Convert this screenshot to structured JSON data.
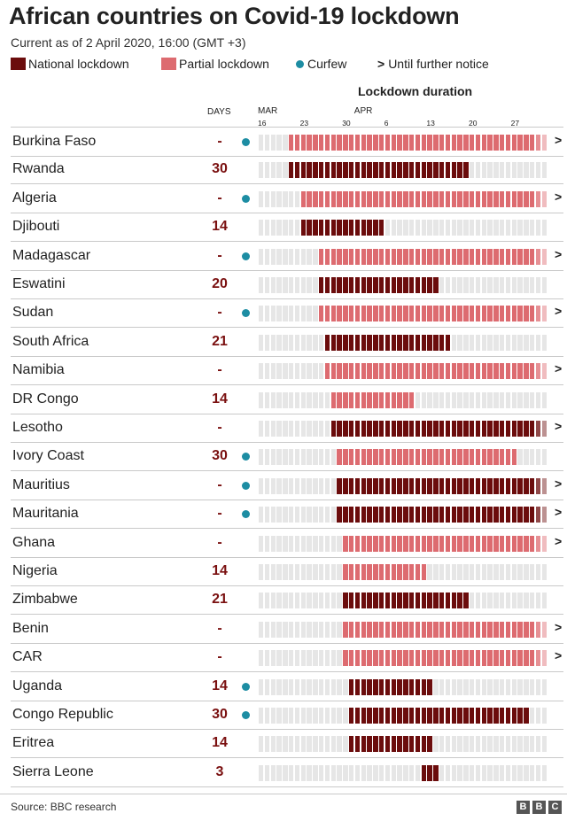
{
  "header": {
    "title": "African countries on Covid-19 lockdown",
    "subtitle": "Current as of 2 April 2020, 16:00 (GMT +3)"
  },
  "legend": {
    "national": "National lockdown",
    "partial": "Partial lockdown",
    "curfew": "Curfew",
    "ongoing": "Until further notice",
    "ongoing_symbol": ">"
  },
  "colors": {
    "national": "#6b0c0c",
    "partial": "#dd6b70",
    "empty": "#e6e6e6",
    "curfew": "#1d8da3",
    "days_text": "#7a1010"
  },
  "axis": {
    "title": "Lockdown duration",
    "days_header": "DAYS",
    "months": [
      {
        "label": "MAR",
        "day": 16
      },
      {
        "label": "APR",
        "day": 32
      }
    ],
    "ticks": [
      {
        "label": "16",
        "day": 16
      },
      {
        "label": "23",
        "day": 23
      },
      {
        "label": "30",
        "day": 30
      },
      {
        "label": "6",
        "day": 37
      },
      {
        "label": "13",
        "day": 44
      },
      {
        "label": "20",
        "day": 51
      },
      {
        "label": "27",
        "day": 58
      }
    ]
  },
  "chart_data": {
    "type": "table",
    "x_domain_days_from_mar1": [
      16,
      64
    ],
    "rows": [
      {
        "country": "Burkina Faso",
        "days": "-",
        "curfew": true,
        "type": "partial",
        "start": 21,
        "end": 64,
        "ongoing": true
      },
      {
        "country": "Rwanda",
        "days": "30",
        "curfew": false,
        "type": "national",
        "start": 21,
        "end": 50,
        "ongoing": false
      },
      {
        "country": "Algeria",
        "days": "-",
        "curfew": true,
        "type": "partial",
        "start": 23,
        "end": 64,
        "ongoing": true
      },
      {
        "country": "Djibouti",
        "days": "14",
        "curfew": false,
        "type": "national",
        "start": 23,
        "end": 36,
        "ongoing": false
      },
      {
        "country": "Madagascar",
        "days": "-",
        "curfew": true,
        "type": "partial",
        "start": 26,
        "end": 64,
        "ongoing": true
      },
      {
        "country": "Eswatini",
        "days": "20",
        "curfew": false,
        "type": "national",
        "start": 26,
        "end": 45,
        "ongoing": false
      },
      {
        "country": "Sudan",
        "days": "-",
        "curfew": true,
        "type": "partial",
        "start": 26,
        "end": 64,
        "ongoing": true
      },
      {
        "country": "South Africa",
        "days": "21",
        "curfew": false,
        "type": "national",
        "start": 27,
        "end": 47,
        "ongoing": false
      },
      {
        "country": "Namibia",
        "days": "-",
        "curfew": false,
        "type": "partial",
        "start": 27,
        "end": 64,
        "ongoing": true
      },
      {
        "country": "DR Congo",
        "days": "14",
        "curfew": false,
        "type": "partial",
        "start": 28,
        "end": 41,
        "ongoing": false
      },
      {
        "country": "Lesotho",
        "days": "-",
        "curfew": false,
        "type": "national",
        "start": 28,
        "end": 64,
        "ongoing": true
      },
      {
        "country": "Ivory Coast",
        "days": "30",
        "curfew": true,
        "type": "partial",
        "start": 29,
        "end": 58,
        "ongoing": false
      },
      {
        "country": "Mauritius",
        "days": "-",
        "curfew": true,
        "type": "national",
        "start": 29,
        "end": 64,
        "ongoing": true
      },
      {
        "country": "Mauritania",
        "days": "-",
        "curfew": true,
        "type": "national",
        "start": 29,
        "end": 64,
        "ongoing": true
      },
      {
        "country": "Ghana",
        "days": "-",
        "curfew": false,
        "type": "partial",
        "start": 30,
        "end": 64,
        "ongoing": true
      },
      {
        "country": "Nigeria",
        "days": "14",
        "curfew": false,
        "type": "partial",
        "start": 30,
        "end": 43,
        "ongoing": false
      },
      {
        "country": "Zimbabwe",
        "days": "21",
        "curfew": false,
        "type": "national",
        "start": 30,
        "end": 50,
        "ongoing": false
      },
      {
        "country": "Benin",
        "days": "-",
        "curfew": false,
        "type": "partial",
        "start": 30,
        "end": 64,
        "ongoing": true
      },
      {
        "country": "CAR",
        "days": "-",
        "curfew": false,
        "type": "partial",
        "start": 30,
        "end": 64,
        "ongoing": true
      },
      {
        "country": "Uganda",
        "days": "14",
        "curfew": true,
        "type": "national",
        "start": 31,
        "end": 44,
        "ongoing": false
      },
      {
        "country": "Congo Republic",
        "days": "30",
        "curfew": true,
        "type": "national",
        "start": 31,
        "end": 60,
        "ongoing": false
      },
      {
        "country": "Eritrea",
        "days": "14",
        "curfew": false,
        "type": "national",
        "start": 31,
        "end": 44,
        "ongoing": false
      },
      {
        "country": "Sierra Leone",
        "days": "3",
        "curfew": false,
        "type": "national",
        "start": 43,
        "end": 45,
        "ongoing": false
      }
    ]
  },
  "footer": {
    "source": "Source: BBC research",
    "logo_letters": [
      "B",
      "B",
      "C"
    ]
  }
}
